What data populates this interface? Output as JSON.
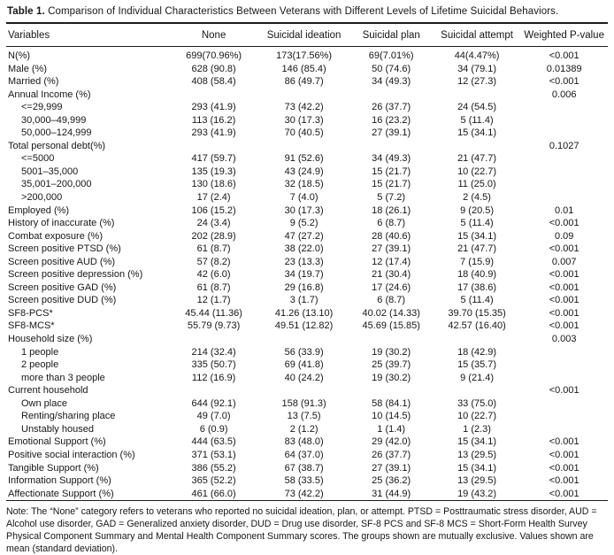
{
  "title": {
    "label": "Table 1.",
    "text": "Comparison of Individual Characteristics Between Veterans with Different Levels of Lifetime Suicidal Behaviors."
  },
  "table": {
    "columns": [
      "Variables",
      "None",
      "Suicidal ideation",
      "Suicidal plan",
      "Suicidal attempt",
      "Weighted P-value"
    ],
    "rows": [
      {
        "label": "N(%)",
        "indent": 0,
        "values": [
          "699(70.96%)",
          "173(17.56%)",
          "69(7.01%)",
          "44(4.47%)",
          "<0.001"
        ]
      },
      {
        "label": "Male (%)",
        "indent": 0,
        "values": [
          "628 (90.8)",
          "146 (85.4)",
          "50 (74.6)",
          "34 (79.1)",
          "0.01389"
        ]
      },
      {
        "label": "Married (%)",
        "indent": 0,
        "values": [
          "408 (58.4)",
          "86 (49.7)",
          "34 (49.3)",
          "12 (27.3)",
          "<0.001"
        ]
      },
      {
        "label": "Annual Income (%)",
        "indent": 0,
        "values": [
          "",
          "",
          "",
          "",
          "0.006"
        ]
      },
      {
        "label": "<=29,999",
        "indent": 1,
        "values": [
          "293 (41.9)",
          "73 (42.2)",
          "26 (37.7)",
          "24 (54.5)",
          ""
        ]
      },
      {
        "label": "30,000–49,999",
        "indent": 1,
        "values": [
          "113 (16.2)",
          "30 (17.3)",
          "16 (23.2)",
          "5 (11.4)",
          ""
        ]
      },
      {
        "label": "50,000–124,999",
        "indent": 1,
        "values": [
          "293 (41.9)",
          "70 (40.5)",
          "27 (39.1)",
          "15 (34.1)",
          ""
        ]
      },
      {
        "label": "Total personal debt(%)",
        "indent": 0,
        "values": [
          "",
          "",
          "",
          "",
          "0.1027"
        ]
      },
      {
        "label": "<=5000",
        "indent": 1,
        "values": [
          "417 (59.7)",
          "91 (52.6)",
          "34 (49.3)",
          "21 (47.7)",
          ""
        ]
      },
      {
        "label": "5001–35,000",
        "indent": 1,
        "values": [
          "135 (19.3)",
          "43 (24.9)",
          "15 (21.7)",
          "10 (22.7)",
          ""
        ]
      },
      {
        "label": "35,001–200,000",
        "indent": 1,
        "values": [
          "130 (18.6)",
          "32 (18.5)",
          "15 (21.7)",
          "11 (25.0)",
          ""
        ]
      },
      {
        "label": ">200,000",
        "indent": 1,
        "values": [
          "17 (2.4)",
          "7 (4.0)",
          "5 (7.2)",
          "2 (4.5)",
          ""
        ]
      },
      {
        "label": "Employed (%)",
        "indent": 0,
        "values": [
          "106 (15.2)",
          "30 (17.3)",
          "18 (26.1)",
          "9 (20.5)",
          "0.01"
        ]
      },
      {
        "label": "History of inaccurate (%)",
        "indent": 0,
        "values": [
          "24 (3.4)",
          "9 (5.2)",
          "6 (8.7)",
          "5 (11.4)",
          "<0.001"
        ]
      },
      {
        "label": "Combat exposure (%)",
        "indent": 0,
        "values": [
          "202 (28.9)",
          "47 (27.2)",
          "28 (40.6)",
          "15 (34.1)",
          "0.09"
        ]
      },
      {
        "label": "Screen positive PTSD (%)",
        "indent": 0,
        "values": [
          "61 (8.7)",
          "38 (22.0)",
          "27 (39.1)",
          "21 (47.7)",
          "<0.001"
        ]
      },
      {
        "label": "Screen positive AUD (%)",
        "indent": 0,
        "values": [
          "57 (8.2)",
          "23 (13.3)",
          "12 (17.4)",
          "7 (15.9)",
          "0.007"
        ]
      },
      {
        "label": "Screen positive depression (%)",
        "indent": 0,
        "values": [
          "42 (6.0)",
          "34 (19.7)",
          "21 (30.4)",
          "18 (40.9)",
          "<0.001"
        ]
      },
      {
        "label": "Screen positive GAD (%)",
        "indent": 0,
        "values": [
          "61 (8.7)",
          "29 (16.8)",
          "17 (24.6)",
          "17 (38.6)",
          "<0.001"
        ]
      },
      {
        "label": "Screen positive DUD (%)",
        "indent": 0,
        "values": [
          "12 (1.7)",
          "3 (1.7)",
          "6 (8.7)",
          "5 (11.4)",
          "<0.001"
        ]
      },
      {
        "label": "SF8-PCS*",
        "indent": 0,
        "values": [
          "45.44 (11.36)",
          "41.26 (13.10)",
          "40.02 (14.33)",
          "39.70 (15.35)",
          "<0.001"
        ]
      },
      {
        "label": "SF8-MCS*",
        "indent": 0,
        "values": [
          "55.79 (9.73)",
          "49.51 (12.82)",
          "45.69 (15.85)",
          "42.57 (16.40)",
          "<0.001"
        ]
      },
      {
        "label": "Household size (%)",
        "indent": 0,
        "values": [
          "",
          "",
          "",
          "",
          "0.003"
        ]
      },
      {
        "label": "1 people",
        "indent": 1,
        "values": [
          "214 (32.4)",
          "56 (33.9)",
          "19 (30.2)",
          "18 (42.9)",
          ""
        ]
      },
      {
        "label": "2 people",
        "indent": 1,
        "values": [
          "335 (50.7)",
          "69 (41.8)",
          "25 (39.7)",
          "15 (35.7)",
          ""
        ]
      },
      {
        "label": "more than 3 people",
        "indent": 1,
        "values": [
          "112 (16.9)",
          "40 (24.2)",
          "19 (30.2)",
          "9 (21.4)",
          ""
        ]
      },
      {
        "label": "Current household",
        "indent": 0,
        "values": [
          "",
          "",
          "",
          "",
          "<0.001"
        ]
      },
      {
        "label": "Own place",
        "indent": 1,
        "values": [
          "644 (92.1)",
          "158 (91.3)",
          "58 (84.1)",
          "33 (75.0)",
          ""
        ]
      },
      {
        "label": "Renting/sharing place",
        "indent": 1,
        "values": [
          "49 (7.0)",
          "13 (7.5)",
          "10 (14.5)",
          "10 (22.7)",
          ""
        ]
      },
      {
        "label": "Unstably housed",
        "indent": 1,
        "values": [
          "6 (0.9)",
          "2 (1.2)",
          "1 (1.4)",
          "1 (2.3)",
          ""
        ]
      },
      {
        "label": "Emotional Support (%)",
        "indent": 0,
        "values": [
          "444 (63.5)",
          "83 (48.0)",
          "29 (42.0)",
          "15 (34.1)",
          "<0.001"
        ]
      },
      {
        "label": "Positive social interaction (%)",
        "indent": 0,
        "values": [
          "371 (53.1)",
          "64 (37.0)",
          "26 (37.7)",
          "13 (29.5)",
          "<0.001"
        ]
      },
      {
        "label": "Tangible Support (%)",
        "indent": 0,
        "values": [
          "386 (55.2)",
          "67 (38.7)",
          "27 (39.1)",
          "15 (34.1)",
          "<0.001"
        ]
      },
      {
        "label": "Information Support (%)",
        "indent": 0,
        "values": [
          "365 (52.2)",
          "58 (33.5)",
          "25 (36.2)",
          "13 (29.5)",
          "<0.001"
        ]
      },
      {
        "label": "Affectionate Support (%)",
        "indent": 0,
        "values": [
          "461 (66.0)",
          "73 (42.2)",
          "31 (44.9)",
          "19 (43.2)",
          "<0.001"
        ]
      }
    ]
  },
  "note": "Note: The “None” category refers to veterans who reported no suicidal ideation, plan, or attempt. PTSD = Posttraumatic stress disorder, AUD = Alcohol use disorder, GAD = Generalized anxiety disorder, DUD = Drug use disorder, SF-8 PCS and SF-8 MCS = Short-Form Health Survey Physical Component Summary and Mental Health Component Summary scores. The groups shown are mutually exclusive. Values shown are mean (standard deviation)."
}
